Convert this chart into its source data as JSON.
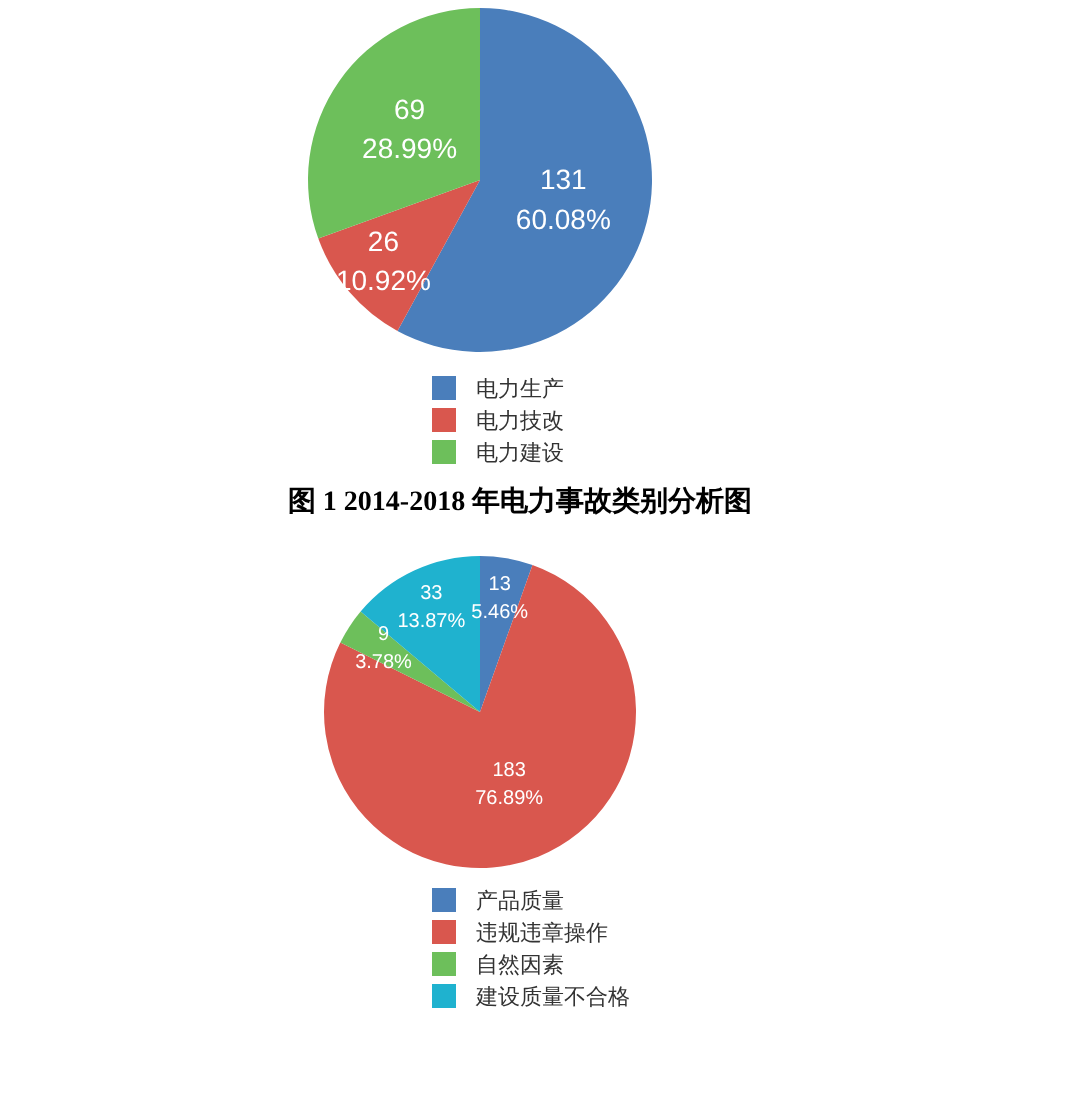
{
  "chart_data": [
    {
      "type": "pie",
      "title": "图 1 2014-2018 年电力事故类别分析图",
      "categories": [
        "电力生产",
        "电力技改",
        "电力建设"
      ],
      "values": [
        131,
        26,
        69
      ],
      "colors": [
        "#4a7ebb",
        "#d9574e",
        "#6dbf5b"
      ],
      "value_labels": [
        "131\n60.08%",
        "26\n10.92%",
        "69\n28.99%"
      ],
      "legend": "bottom"
    },
    {
      "type": "pie",
      "categories": [
        "产品质量",
        "违规违章操作",
        "自然因素",
        "建设质量不合格"
      ],
      "values": [
        13,
        183,
        9,
        33
      ],
      "colors": [
        "#4a7ebb",
        "#d9574e",
        "#6dbf5b",
        "#1fb2cf"
      ],
      "value_labels": [
        "13\n5.46%",
        "183\n76.89%",
        "9\n3.78%",
        "33\n13.87%"
      ],
      "legend": "bottom"
    }
  ]
}
